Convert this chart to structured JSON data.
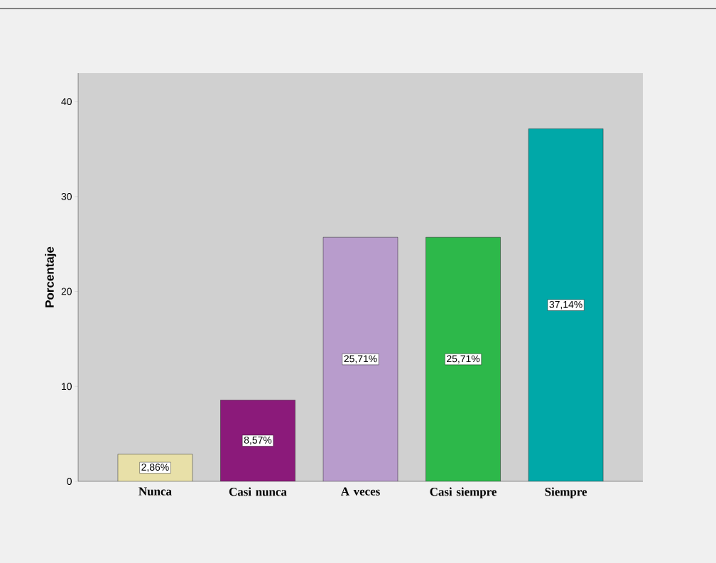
{
  "chart_data": {
    "type": "bar",
    "ylabel": "Porcentaje",
    "categories": [
      "Nunca",
      "Casi nunca",
      "A veces",
      "Casi siempre",
      "Siempre"
    ],
    "values": [
      2.86,
      8.57,
      25.71,
      25.71,
      37.14
    ],
    "colors": [
      "#e8e0a8",
      "#8b1a7a",
      "#b89ccc",
      "#2db84a",
      "#00a8a8"
    ],
    "value_labels": [
      "2,86%",
      "8,57%",
      "25,71%",
      "25,71%",
      "37,14%"
    ],
    "ylim": [
      0,
      43
    ],
    "yticks": [
      0,
      10,
      20,
      30,
      40
    ]
  }
}
